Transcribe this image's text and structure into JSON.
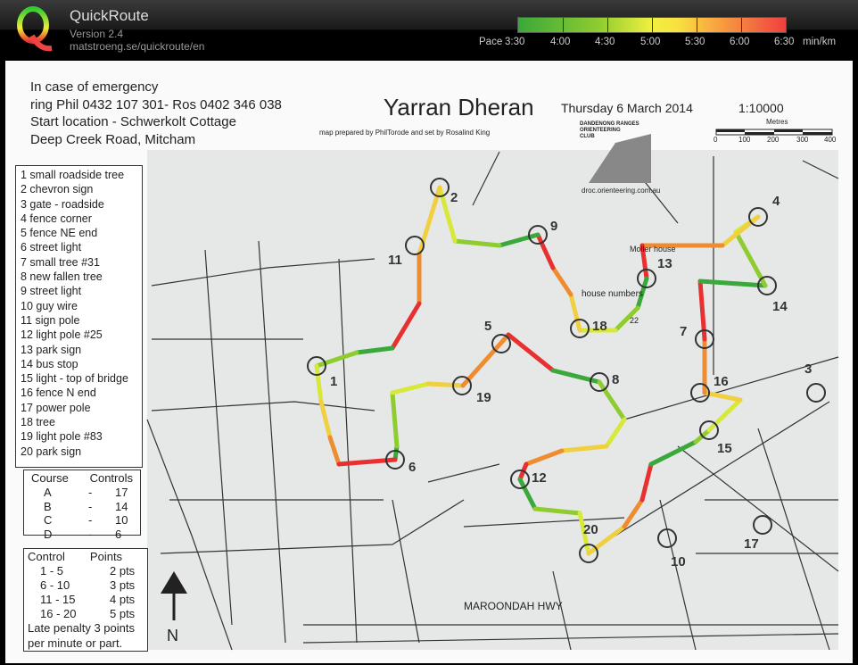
{
  "app": {
    "title": "QuickRoute",
    "version": "Version 2.4",
    "url": "matstroeng.se/quickroute/en"
  },
  "pace_legend": {
    "prefix": "Pace",
    "ticks": [
      "3:30",
      "4:00",
      "4:30",
      "5:00",
      "5:30",
      "6:00",
      "6:30"
    ],
    "unit": "min/km",
    "colors": {
      "fast": "#3aa83a",
      "mid": "#f0f040",
      "slow": "#f04040"
    }
  },
  "map": {
    "emergency": [
      "In case of emergency",
      "ring Phil 0432 107 301- Ros 0402 346 038",
      "Start location - Schwerkolt Cottage",
      "Deep Creek Road, Mitcham"
    ],
    "title": "Yarran Dheran",
    "date": "Thursday 6 March 2014",
    "credit": "map prepared by PhilTorode and set by Rosalind King",
    "scale": "1:10000",
    "scale_unit": "Metres",
    "scale_ticks": [
      "0",
      "100",
      "200",
      "300",
      "400"
    ],
    "club": [
      "DANDENONG RANGES",
      "ORIENTEERING",
      "CLUB"
    ],
    "club_url": "droc.orienteering.com.au",
    "labels": {
      "moller": "Moller house",
      "house_numbers": "house numbers",
      "num22": "22",
      "highway": "MAROONDAH HWY",
      "north": "N"
    },
    "controls_desc": [
      "1  small roadside tree",
      "2  chevron sign",
      "3  gate - roadside",
      "4  fence corner",
      "5  fence NE end",
      "6  street light",
      "7  small tree #31",
      "8  new fallen tree",
      "9  street light",
      "10 guy wire",
      "11 sign pole",
      "12 light pole #25",
      "13 park sign",
      "14 bus stop",
      "15 light - top of bridge",
      "16 fence N end",
      "17 power pole",
      "18 tree",
      "19 light pole #83",
      "20 park sign"
    ],
    "courses": {
      "header": [
        "Course",
        "Controls"
      ],
      "rows": [
        [
          "A",
          "-",
          "17"
        ],
        [
          "B",
          "-",
          "14"
        ],
        [
          "C",
          "-",
          "10"
        ],
        [
          "D",
          "-",
          "6"
        ]
      ]
    },
    "points": {
      "header": [
        "Control",
        "Points"
      ],
      "rows": [
        [
          "1 -  5",
          "2 pts"
        ],
        [
          "6 - 10",
          "3 pts"
        ],
        [
          "11 - 15",
          "4 pts"
        ],
        [
          "16 - 20",
          "5 pts"
        ]
      ],
      "note": [
        "Late penalty 3 points",
        "per minute or part."
      ]
    },
    "control_numbers": [
      "1",
      "2",
      "3",
      "4",
      "5",
      "6",
      "7",
      "8",
      "9",
      "10",
      "11",
      "12",
      "13",
      "14",
      "15",
      "16",
      "17",
      "18",
      "19",
      "20"
    ]
  }
}
